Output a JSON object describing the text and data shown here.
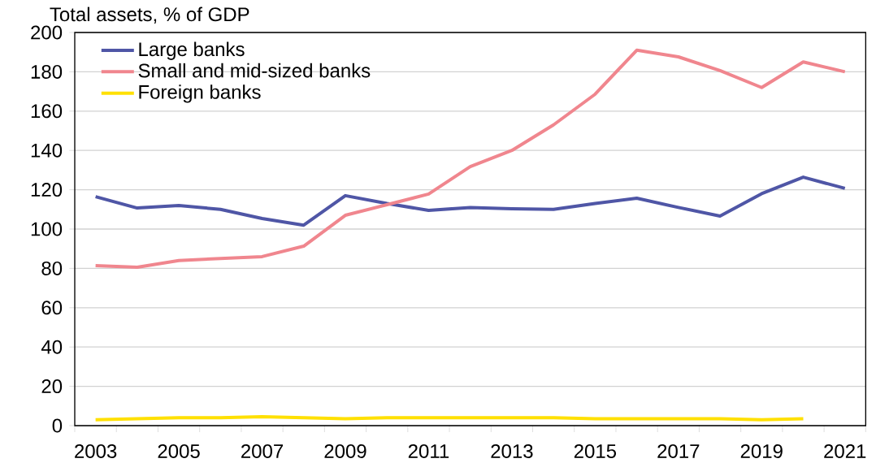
{
  "chart_data": {
    "type": "line",
    "title": "Total assets, % of GDP",
    "categories": [
      "2003",
      null,
      "2005",
      null,
      "2007",
      null,
      "2009",
      null,
      "2011",
      null,
      "2013",
      null,
      "2015",
      null,
      "2017",
      null,
      "2019",
      null,
      "2021"
    ],
    "series": [
      {
        "name": "Large banks",
        "color": "#4f56a6",
        "values": [
          116.5,
          110.7,
          112,
          110,
          105.4,
          102,
          117,
          113,
          109.5,
          111,
          110.3,
          110,
          113,
          115.7,
          111,
          106.6,
          118,
          126.4,
          120.7
        ]
      },
      {
        "name": "Small and mid-sized banks",
        "color": "#f0868e",
        "values": [
          81.4,
          80.6,
          84,
          85,
          86,
          91.3,
          107,
          112.4,
          117.8,
          131.8,
          140,
          153,
          168.6,
          191,
          187.6,
          180.6,
          172,
          185,
          180
        ]
      },
      {
        "name": "Foreign banks",
        "color": "#ffe000",
        "values": [
          3,
          3.5,
          4,
          4,
          4.5,
          4,
          3.5,
          4,
          4,
          4,
          4,
          4,
          3.5,
          3.5,
          3.5,
          3.5,
          3,
          3.5,
          null
        ]
      }
    ],
    "ylim": [
      0,
      200
    ],
    "yticks": [
      0,
      20,
      40,
      60,
      80,
      100,
      120,
      140,
      160,
      180,
      200
    ],
    "grid": "y",
    "legend": "top left",
    "marker": "none",
    "line_style": "solid"
  }
}
